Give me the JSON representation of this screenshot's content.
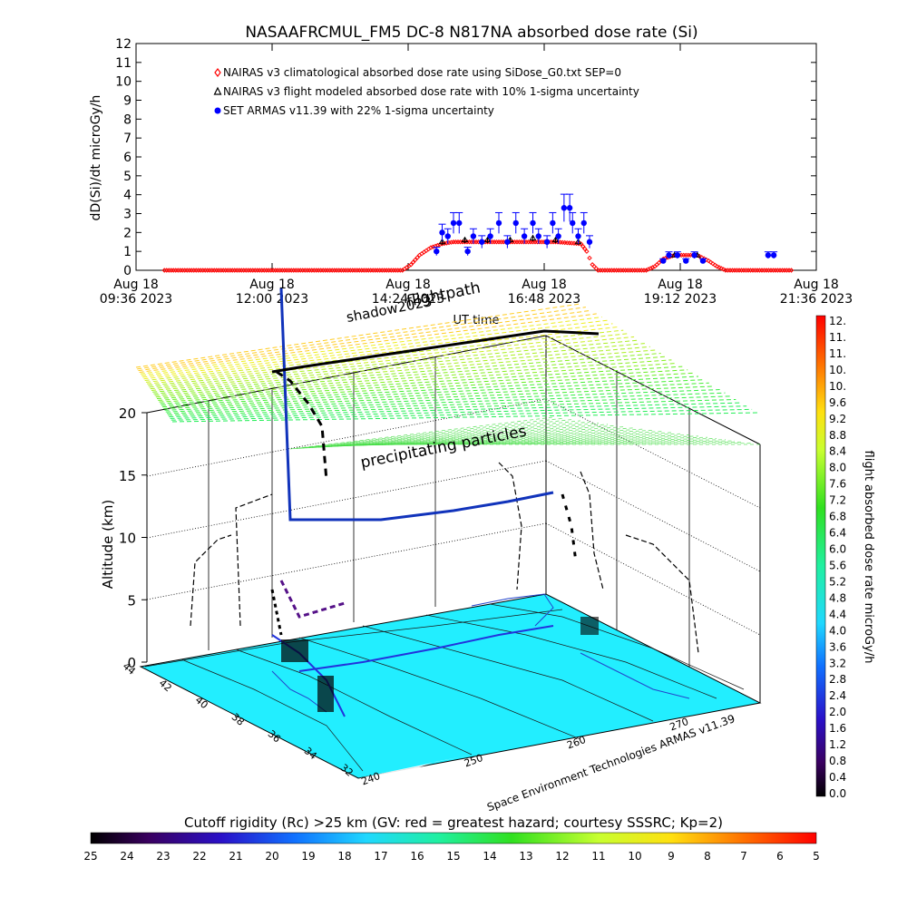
{
  "chart_data": [
    {
      "type": "scatter",
      "title": "NASAAFRCMUL_FM5 DC-8    N817NA absorbed dose rate (Si)",
      "ylabel": "dD(Si)/dt microGy/h",
      "xlabel": "UT time",
      "ylim": [
        0,
        12
      ],
      "y_ticks": [
        "0",
        "1",
        "2",
        "3",
        "4",
        "5",
        "6",
        "7",
        "8",
        "9",
        "10",
        "11",
        "12"
      ],
      "x_ticks": [
        {
          "h": 9.6,
          "line1": "Aug 18",
          "line2": "09:36 2023"
        },
        {
          "h": 12.0,
          "line1": "Aug 18",
          "line2": "12:00 2023"
        },
        {
          "h": 14.4,
          "line1": "Aug 18",
          "line2": "14:24 2023"
        },
        {
          "h": 16.8,
          "line1": "Aug 18",
          "line2": "16:48 2023"
        },
        {
          "h": 19.2,
          "line1": "Aug 18",
          "line2": "19:12 2023"
        },
        {
          "h": 21.6,
          "line1": "Aug 18",
          "line2": "21:36 2023"
        }
      ],
      "legend": [
        {
          "text": "NAIRAS v3 climatological absorbed dose rate using SiDose_G0.txt SEP=0",
          "color": "#ff0000",
          "marker": "diamond"
        },
        {
          "text": "NAIRAS v3 flight modeled absorbed dose rate with 10% 1-sigma uncertainty",
          "color": "#000000",
          "marker": "triangle"
        },
        {
          "text": "SET ARMAS v11.39 with 22% 1-sigma uncertainty",
          "color": "#0000ff",
          "marker": "circle"
        }
      ],
      "series": [
        {
          "name": "NAIRAS v3 climatological absorbed dose rate using SiDose_G0.txt SEP=0",
          "color": "#ff0000",
          "points": [
            [
              10.1,
              0.0
            ],
            [
              14.3,
              0.0
            ],
            [
              14.45,
              0.3
            ],
            [
              14.6,
              0.8
            ],
            [
              14.8,
              1.2
            ],
            [
              15.0,
              1.4
            ],
            [
              15.2,
              1.5
            ],
            [
              16.0,
              1.5
            ],
            [
              17.0,
              1.5
            ],
            [
              17.45,
              1.4
            ],
            [
              17.55,
              1.0
            ],
            [
              17.65,
              0.3
            ],
            [
              17.75,
              0.0
            ],
            [
              18.6,
              0.0
            ],
            [
              18.75,
              0.2
            ],
            [
              18.9,
              0.6
            ],
            [
              19.1,
              0.8
            ],
            [
              19.5,
              0.8
            ],
            [
              19.7,
              0.5
            ],
            [
              19.85,
              0.2
            ],
            [
              20.0,
              0.0
            ],
            [
              21.2,
              0.0
            ]
          ]
        },
        {
          "name": "NAIRAS v3 flight modeled absorbed dose rate with 10% 1-sigma uncertainty",
          "color": "#000000",
          "points": [
            [
              15.0,
              1.5
            ],
            [
              15.4,
              1.6
            ],
            [
              15.8,
              1.6
            ],
            [
              16.2,
              1.6
            ],
            [
              16.6,
              1.7
            ],
            [
              17.0,
              1.6
            ],
            [
              17.4,
              1.5
            ],
            [
              19.1,
              0.8
            ],
            [
              19.5,
              0.8
            ]
          ]
        },
        {
          "name": "SET ARMAS v11.39 with 22% 1-sigma uncertainty",
          "color": "#0000ff",
          "points": [
            [
              14.9,
              1.0
            ],
            [
              15.0,
              2.0
            ],
            [
              15.1,
              1.8
            ],
            [
              15.2,
              2.5
            ],
            [
              15.3,
              2.5
            ],
            [
              15.45,
              1.0
            ],
            [
              15.55,
              1.8
            ],
            [
              15.7,
              1.5
            ],
            [
              15.85,
              1.8
            ],
            [
              16.0,
              2.5
            ],
            [
              16.15,
              1.5
            ],
            [
              16.3,
              2.5
            ],
            [
              16.45,
              1.8
            ],
            [
              16.6,
              2.5
            ],
            [
              16.7,
              1.8
            ],
            [
              16.85,
              1.5
            ],
            [
              16.95,
              2.5
            ],
            [
              17.05,
              1.8
            ],
            [
              17.15,
              3.3
            ],
            [
              17.25,
              3.3
            ],
            [
              17.3,
              2.5
            ],
            [
              17.4,
              1.8
            ],
            [
              17.5,
              2.5
            ],
            [
              17.6,
              1.5
            ],
            [
              18.9,
              0.5
            ],
            [
              19.0,
              0.8
            ],
            [
              19.15,
              0.8
            ],
            [
              19.3,
              0.5
            ],
            [
              19.45,
              0.8
            ],
            [
              19.6,
              0.5
            ],
            [
              20.75,
              0.8
            ],
            [
              20.85,
              0.8
            ]
          ]
        }
      ]
    },
    {
      "type": "scatter",
      "subtype": "3d-flight-track",
      "zlabel": "Altitude (km)",
      "z_ticks": [
        "0",
        "5",
        "10",
        "15",
        "20"
      ],
      "zlim": [
        0,
        20
      ],
      "lat_ticks": [
        "44",
        "42",
        "40",
        "38",
        "36",
        "34",
        "32"
      ],
      "lon_ticks": [
        "240",
        "250",
        "260",
        "270"
      ],
      "annotations": [
        "flightpath",
        "shadow2023",
        "precipitating particles"
      ],
      "credit": "Space Environment Technologies ARMAS v11.39",
      "map_fill_color": "#22eeff"
    },
    {
      "type": "heatmap",
      "subtype": "colorbar-vertical",
      "label": "flight absorbed dose rate microGy/h",
      "ticks": [
        "12.",
        "11.",
        "11.",
        "10.",
        "10.",
        "9.6",
        "9.2",
        "8.8",
        "8.4",
        "8.0",
        "7.6",
        "7.2",
        "6.8",
        "6.4",
        "6.0",
        "5.6",
        "5.2",
        "4.8",
        "4.4",
        "4.0",
        "3.6",
        "3.2",
        "2.8",
        "2.4",
        "2.0",
        "1.6",
        "1.2",
        "0.8",
        "0.4",
        "0.0"
      ]
    },
    {
      "type": "heatmap",
      "subtype": "colorbar-horizontal",
      "label": "Cutoff rigidity (Rc) >25 km (GV: red = greatest hazard; courtesy SSSRC; Kp=2)",
      "ticks": [
        "25",
        "24",
        "23",
        "22",
        "21",
        "20",
        "19",
        "18",
        "17",
        "16",
        "15",
        "14",
        "13",
        "12",
        "11",
        "10",
        "9",
        "8",
        "7",
        "6",
        "5"
      ]
    }
  ]
}
